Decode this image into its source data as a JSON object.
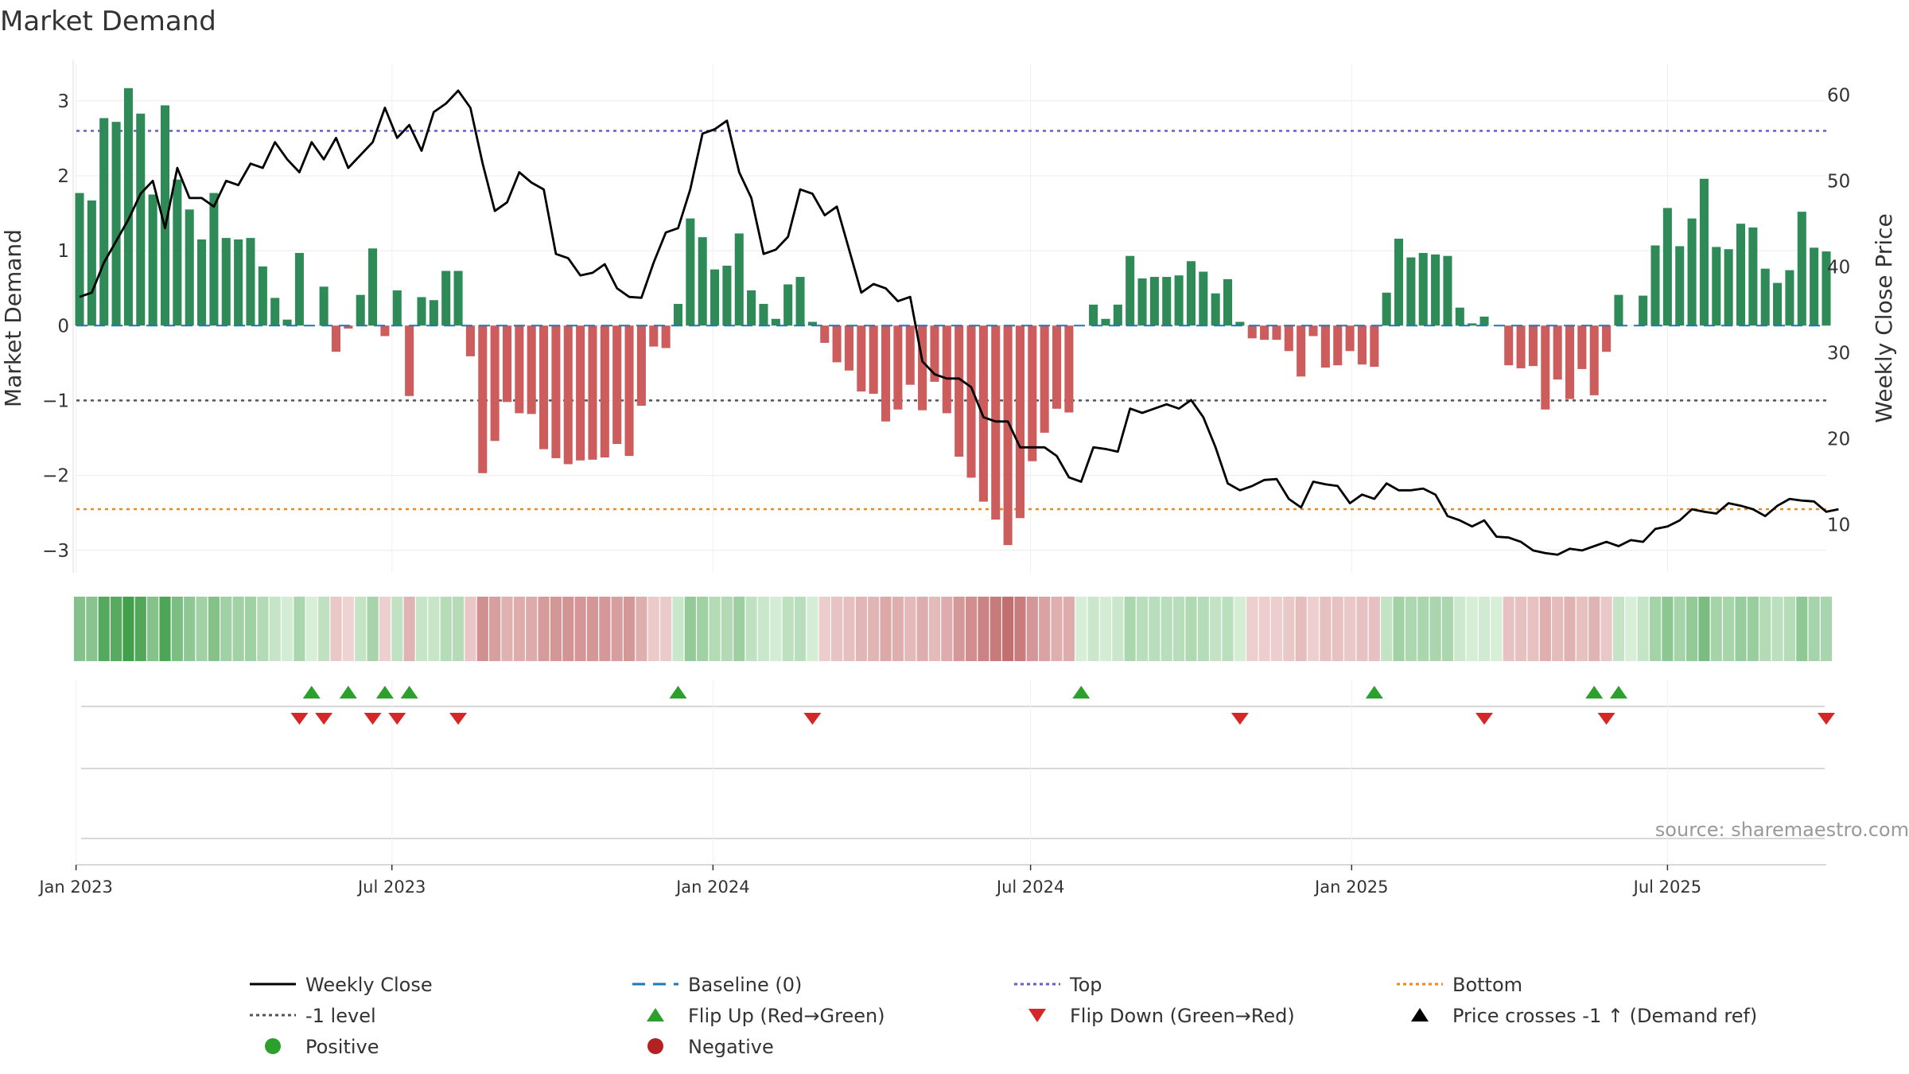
{
  "chart_data": {
    "type": "bar",
    "title": "Market Demand",
    "ylabel_left": "Market Demand",
    "ylabel_right": "Weekly Close Price",
    "ylim_left": [
      -3.3,
      3.55
    ],
    "ylim_right": [
      4.4,
      64.1
    ],
    "yticks_left": [
      3,
      2,
      1,
      0,
      -1,
      -2,
      -3
    ],
    "yticks_left_labels": [
      "3",
      "2",
      "1",
      "0",
      "−1",
      "−2",
      "−3"
    ],
    "yticks_right": [
      60,
      50,
      40,
      30,
      20,
      10
    ],
    "x_start": "2023-01-03",
    "x_end": "2025-09-30",
    "xtick_dates": [
      "2023-01-01",
      "2023-07-01",
      "2024-01-01",
      "2024-07-01",
      "2025-01-01",
      "2025-07-01"
    ],
    "xtick_labels": [
      "Jan 2023",
      "Jul 2023",
      "Jan 2024",
      "Jul 2024",
      "Jan 2025",
      "Jul 2025"
    ],
    "reference_lines": {
      "top": 2.6,
      "minus_one": -1.0,
      "bottom": -2.45,
      "baseline": 0
    },
    "demand": [
      1.77,
      1.67,
      2.77,
      2.72,
      3.17,
      2.83,
      1.75,
      2.94,
      1.95,
      1.55,
      1.15,
      1.77,
      1.17,
      1.15,
      1.17,
      0.79,
      0.37,
      0.08,
      0.97,
      0,
      0.52,
      -0.35,
      -0.04,
      0.41,
      1.03,
      -0.14,
      0.47,
      -0.94,
      0.38,
      0.34,
      0.73,
      0.73,
      -0.41,
      -1.97,
      -1.54,
      -1.02,
      -1.17,
      -1.18,
      -1.65,
      -1.77,
      -1.85,
      -1.8,
      -1.79,
      -1.76,
      -1.58,
      -1.74,
      -1.07,
      -0.28,
      -0.3,
      0.29,
      1.43,
      1.18,
      0.75,
      0.8,
      1.23,
      0.47,
      0.29,
      0.09,
      0.55,
      0.65,
      0.05,
      -0.23,
      -0.49,
      -0.6,
      -0.88,
      -0.91,
      -1.28,
      -1.12,
      -0.79,
      -1.13,
      -0.75,
      -1.17,
      -1.75,
      -2.03,
      -2.35,
      -2.59,
      -2.93,
      -2.57,
      -1.81,
      -1.43,
      -1.11,
      -1.16,
      0,
      0.28,
      0.09,
      0.28,
      0.93,
      0.63,
      0.65,
      0.65,
      0.67,
      0.86,
      0.72,
      0.43,
      0.62,
      0.05,
      -0.17,
      -0.19,
      -0.19,
      -0.34,
      -0.68,
      -0.14,
      -0.56,
      -0.53,
      -0.34,
      -0.52,
      -0.55,
      0.44,
      1.16,
      0.91,
      0.97,
      0.95,
      0.93,
      0.24,
      0.03,
      0.12,
      0,
      -0.53,
      -0.57,
      -0.54,
      -1.12,
      -0.72,
      -0.98,
      -0.58,
      -0.93,
      -0.35,
      0.41,
      0,
      0.4,
      1.07,
      1.57,
      1.06,
      1.43,
      1.96,
      1.05,
      1.02,
      1.36,
      1.31,
      0.76,
      0.57,
      0.74,
      1.52,
      1.04,
      0.99
    ],
    "weekly_close": [
      36.5,
      37.0,
      40.5,
      43.0,
      45.5,
      48.5,
      50.0,
      44.5,
      51.5,
      48.0,
      48.0,
      47.0,
      50.0,
      49.5,
      52.0,
      51.5,
      54.5,
      52.5,
      51.0,
      54.5,
      52.5,
      55.0,
      51.5,
      53.0,
      54.5,
      58.5,
      55.0,
      56.5,
      53.5,
      58.0,
      59.0,
      60.5,
      58.5,
      52.0,
      46.5,
      47.5,
      51.0,
      49.8,
      49.0,
      41.5,
      41.0,
      39.0,
      39.3,
      40.3,
      37.5,
      36.5,
      36.4,
      40.5,
      44.0,
      44.5,
      49.0,
      55.5,
      56.0,
      57.0,
      51.0,
      48.0,
      41.5,
      42.0,
      43.5,
      49.0,
      48.5,
      46.0,
      47.0,
      42.0,
      37.0,
      38.0,
      37.5,
      36.0,
      36.5,
      29.0,
      27.5,
      27.0,
      27.0,
      26.0,
      22.5,
      22.0,
      22.0,
      19.0,
      19.0,
      19.0,
      18.0,
      15.5,
      15.0,
      19.0,
      18.8,
      18.5,
      23.5,
      23.0,
      23.5,
      24.0,
      23.5,
      24.5,
      22.5,
      19.0,
      14.8,
      14.0,
      14.5,
      15.2,
      15.3,
      13.0,
      12.0,
      15.0,
      14.7,
      14.5,
      12.5,
      13.5,
      13.0,
      14.8,
      14.0,
      14.0,
      14.2,
      13.5,
      11.0,
      10.5,
      9.8,
      10.5,
      8.6,
      8.5,
      8.0,
      7.0,
      6.7,
      6.5,
      7.2,
      7.0,
      7.5,
      8.0,
      7.5,
      8.2,
      8.0,
      9.5,
      9.8,
      10.5,
      11.8,
      11.5,
      11.3,
      12.5,
      12.2,
      11.8,
      11.0,
      12.2,
      13.0,
      12.8,
      12.7,
      11.5,
      11.8
    ],
    "flip_up_weeks": [
      19,
      22,
      25,
      27,
      49,
      82,
      106,
      124,
      126
    ],
    "flip_down_weeks": [
      18,
      20,
      24,
      26,
      31,
      60,
      95,
      115,
      125,
      143
    ],
    "source_text": "source: sharemaestro.com",
    "legend": [
      {
        "label": "Weekly Close",
        "symbol": "line-solid",
        "color": "#000000"
      },
      {
        "label": "Baseline (0)",
        "symbol": "line-dashed",
        "color": "#1f77b4"
      },
      {
        "label": "Top",
        "symbol": "line-dotted",
        "color": "#6a5acd"
      },
      {
        "label": "Bottom",
        "symbol": "line-dotted",
        "color": "#e88b1f"
      },
      {
        "label": "-1 level",
        "symbol": "line-dotted",
        "color": "#555555"
      },
      {
        "label": "Flip Up (Red→Green)",
        "symbol": "triangle-up",
        "color": "#2ca02c"
      },
      {
        "label": "Flip Down (Green→Red)",
        "symbol": "triangle-down",
        "color": "#d62728"
      },
      {
        "label": "Price crosses -1 ↑ (Demand ref)",
        "symbol": "triangle-up",
        "color": "#000000"
      },
      {
        "label": "Positive",
        "symbol": "circle",
        "color": "#2ca02c"
      },
      {
        "label": "Negative",
        "symbol": "circle",
        "color": "#b22222"
      }
    ],
    "colors": {
      "positive_bar": "#2e8b57",
      "negative_bar": "#cd5c5c",
      "price_line": "#000000",
      "top_line": "#6a5acd",
      "bottom_line": "#e88b1f",
      "minus_one_line": "#555555",
      "baseline": "#1f77b4",
      "flip_up": "#2ca02c",
      "flip_down": "#d62728"
    }
  }
}
